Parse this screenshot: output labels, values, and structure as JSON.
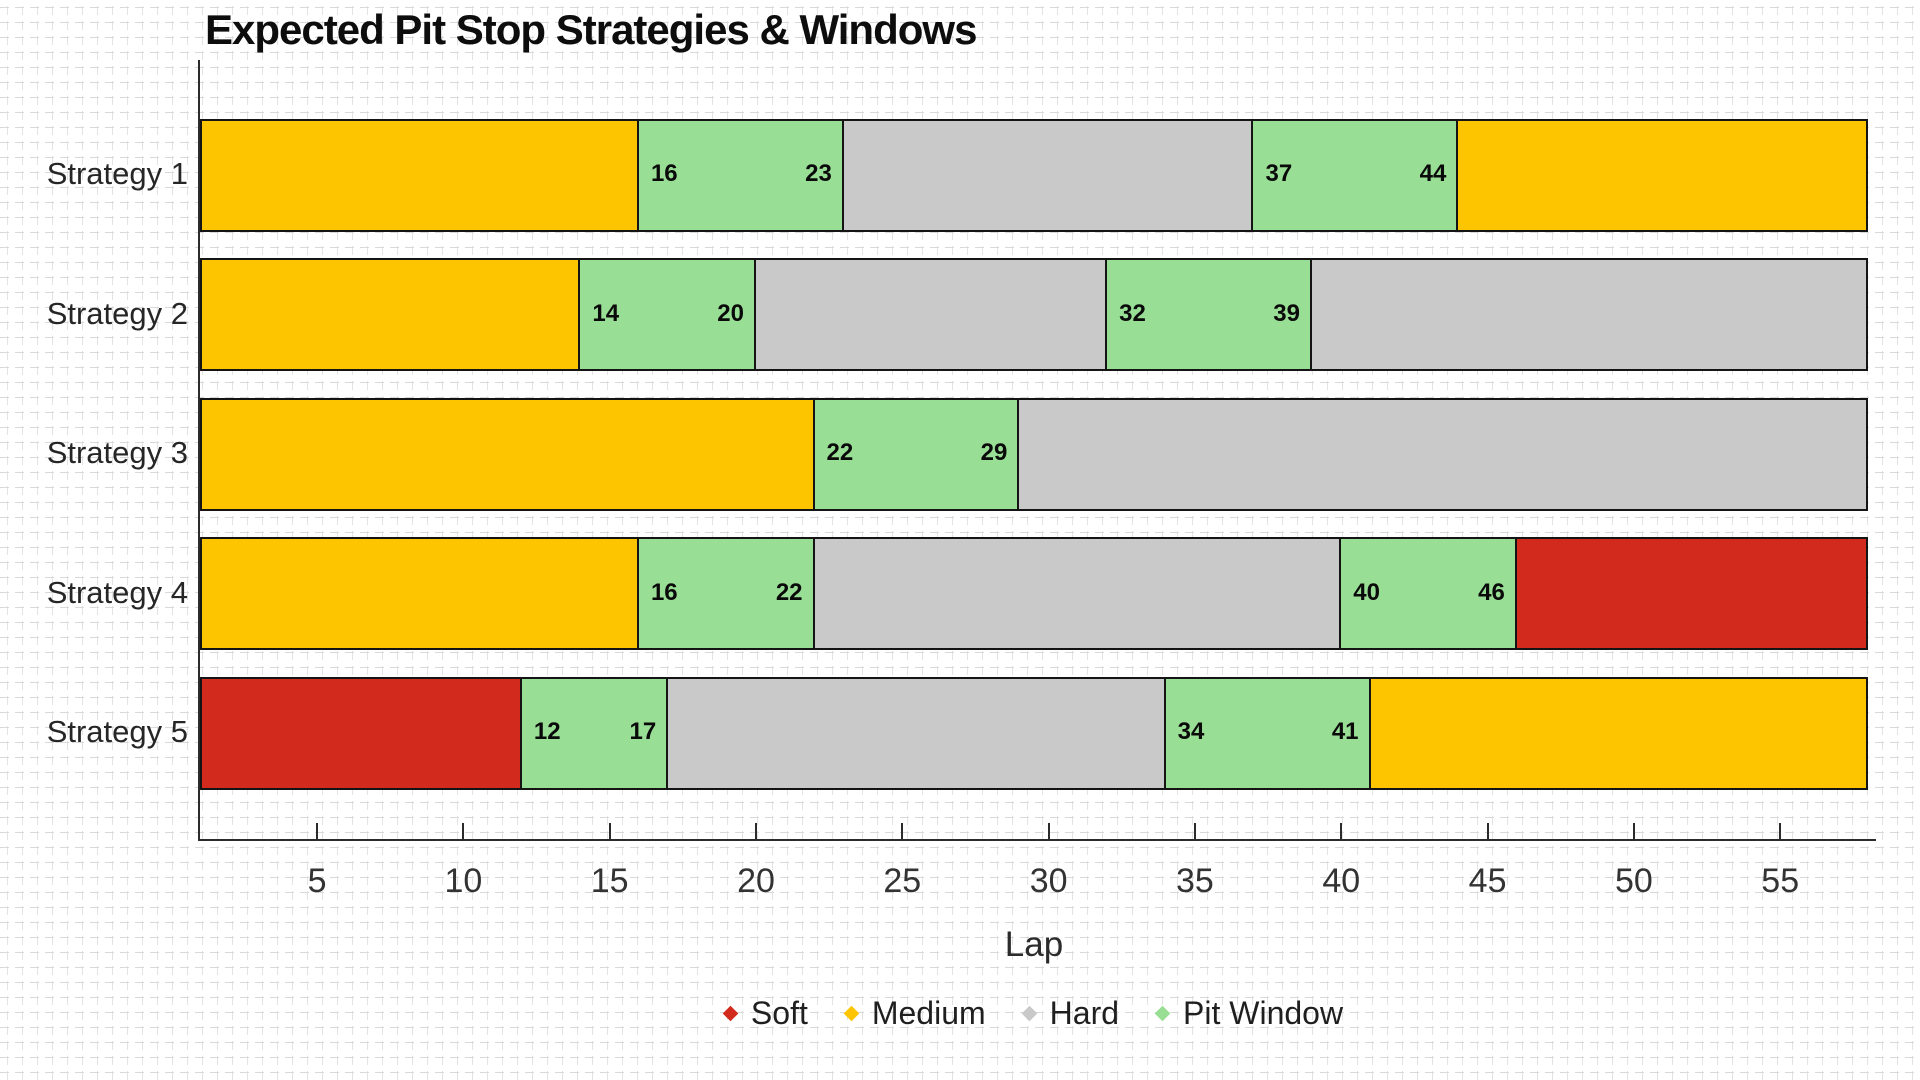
{
  "title": "Expected Pit Stop Strategies & Windows",
  "xlabel": "Lap",
  "colors": {
    "soft": "#d32a1e",
    "medium": "#fdc500",
    "hard": "#c9c9c9",
    "pit_window": "#98de94",
    "segment_border": "#141414",
    "axis": "#2b2b2b"
  },
  "legend": [
    {
      "label": "Soft",
      "color_key": "soft"
    },
    {
      "label": "Medium",
      "color_key": "medium"
    },
    {
      "label": "Hard",
      "color_key": "hard"
    },
    {
      "label": "Pit Window",
      "color_key": "pit_window"
    }
  ],
  "chart_data": {
    "type": "bar",
    "orientation": "horizontal-gantt",
    "title": "Expected Pit Stop Strategies & Windows",
    "xlabel": "Lap",
    "x_axis": {
      "min": 1,
      "max": 58,
      "tick_values": [
        5,
        10,
        15,
        20,
        25,
        30,
        35,
        40,
        45,
        50,
        55
      ],
      "tick_labels": [
        "5",
        "10",
        "15",
        "20",
        "25",
        "30",
        "35",
        "40",
        "45",
        "50",
        "55"
      ]
    },
    "legend_position": "bottom-center",
    "grid": "fine graph paper background",
    "rows": [
      {
        "label": "Strategy 1",
        "segments": [
          {
            "tyre": "medium",
            "start": 1,
            "end": 16
          },
          {
            "tyre": "pit_window",
            "start": 16,
            "end": 23,
            "label_start": "16",
            "label_end": "23"
          },
          {
            "tyre": "hard",
            "start": 23,
            "end": 37
          },
          {
            "tyre": "pit_window",
            "start": 37,
            "end": 44,
            "label_start": "37",
            "label_end": "44"
          },
          {
            "tyre": "medium",
            "start": 44,
            "end": 58
          }
        ]
      },
      {
        "label": "Strategy 2",
        "segments": [
          {
            "tyre": "medium",
            "start": 1,
            "end": 14
          },
          {
            "tyre": "pit_window",
            "start": 14,
            "end": 20,
            "label_start": "14",
            "label_end": "20"
          },
          {
            "tyre": "hard",
            "start": 20,
            "end": 32
          },
          {
            "tyre": "pit_window",
            "start": 32,
            "end": 39,
            "label_start": "32",
            "label_end": "39"
          },
          {
            "tyre": "hard",
            "start": 39,
            "end": 58
          }
        ]
      },
      {
        "label": "Strategy 3",
        "segments": [
          {
            "tyre": "medium",
            "start": 1,
            "end": 22
          },
          {
            "tyre": "pit_window",
            "start": 22,
            "end": 29,
            "label_start": "22",
            "label_end": "29"
          },
          {
            "tyre": "hard",
            "start": 29,
            "end": 58
          }
        ]
      },
      {
        "label": "Strategy 4",
        "segments": [
          {
            "tyre": "medium",
            "start": 1,
            "end": 16
          },
          {
            "tyre": "pit_window",
            "start": 16,
            "end": 22,
            "label_start": "16",
            "label_end": "22"
          },
          {
            "tyre": "hard",
            "start": 22,
            "end": 40
          },
          {
            "tyre": "pit_window",
            "start": 40,
            "end": 46,
            "label_start": "40",
            "label_end": "46"
          },
          {
            "tyre": "soft",
            "start": 46,
            "end": 58
          }
        ]
      },
      {
        "label": "Strategy 5",
        "segments": [
          {
            "tyre": "soft",
            "start": 1,
            "end": 12
          },
          {
            "tyre": "pit_window",
            "start": 12,
            "end": 17,
            "label_start": "12",
            "label_end": "17"
          },
          {
            "tyre": "hard",
            "start": 17,
            "end": 34
          },
          {
            "tyre": "pit_window",
            "start": 34,
            "end": 41,
            "label_start": "34",
            "label_end": "41"
          },
          {
            "tyre": "medium",
            "start": 41,
            "end": 58
          }
        ]
      }
    ]
  }
}
